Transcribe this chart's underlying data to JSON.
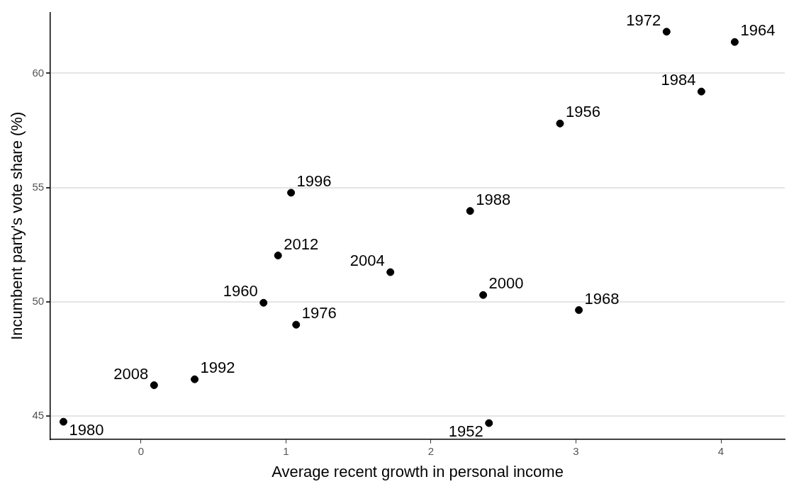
{
  "chart_data": {
    "type": "scatter",
    "xlabel": "Average recent growth in personal income",
    "ylabel": "Incumbent party's vote share (%)",
    "x": [
      -0.535,
      0.09,
      0.37,
      0.945,
      0.845,
      1.035,
      1.07,
      1.72,
      2.27,
      2.36,
      2.4,
      2.89,
      3.02,
      3.625,
      3.865,
      4.095
    ],
    "series": [
      {
        "color": "#000000",
        "values": [
          44.74,
          46.34,
          46.6,
          52.02,
          49.95,
          54.77,
          48.99,
          51.29,
          53.97,
          50.29,
          44.68,
          57.8,
          49.63,
          61.82,
          59.2,
          61.37
        ]
      }
    ],
    "annotations": [
      {
        "text": "1980",
        "x": -0.535,
        "y": 44.74
      },
      {
        "text": "2008",
        "x": 0.09,
        "y": 46.34
      },
      {
        "text": "1992",
        "x": 0.37,
        "y": 46.6
      },
      {
        "text": "2012",
        "x": 0.945,
        "y": 52.02
      },
      {
        "text": "1960",
        "x": 0.845,
        "y": 49.95
      },
      {
        "text": "1996",
        "x": 1.035,
        "y": 54.77
      },
      {
        "text": "1976",
        "x": 1.07,
        "y": 48.99
      },
      {
        "text": "2004",
        "x": 1.72,
        "y": 51.29
      },
      {
        "text": "1988",
        "x": 2.27,
        "y": 53.97
      },
      {
        "text": "2000",
        "x": 2.36,
        "y": 50.29
      },
      {
        "text": "1952",
        "x": 2.4,
        "y": 44.68
      },
      {
        "text": "1956",
        "x": 2.89,
        "y": 57.8
      },
      {
        "text": "1968",
        "x": 3.02,
        "y": 49.63
      },
      {
        "text": "1972",
        "x": 3.625,
        "y": 61.82
      },
      {
        "text": "1984",
        "x": 3.865,
        "y": 59.2
      },
      {
        "text": "1964",
        "x": 4.095,
        "y": 61.37
      }
    ],
    "xlim": [
      -0.625,
      4.44
    ],
    "xticks": [
      0,
      1,
      2,
      3,
      4
    ],
    "ylim": [
      43.98,
      62.65
    ],
    "yticks": [
      45,
      50,
      55,
      60
    ],
    "grid": "y",
    "legend": false,
    "marker": "circle"
  }
}
